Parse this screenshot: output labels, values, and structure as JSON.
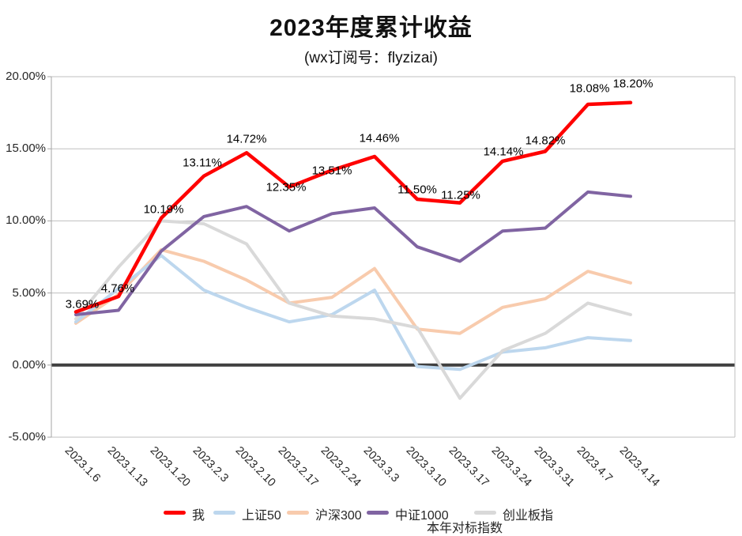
{
  "title": "2023年度累计收益",
  "subtitle": "(wx订阅号：flyzizai)",
  "legend_note": "本年对标指数",
  "chart_data": {
    "type": "line",
    "title": "2023年度累计收益",
    "subtitle": "(wx订阅号：flyzizai)",
    "categories": [
      "2023.1.6",
      "2023.1.13",
      "2023.1.20",
      "2023.2.3",
      "2023.2.10",
      "2023.2.17",
      "2023.2.24",
      "2023.3.3",
      "2023.3.10",
      "2023.3.17",
      "2023.3.24",
      "2023.3.31",
      "2023.4.7",
      "2023.4.14"
    ],
    "ylim": [
      -5,
      20
    ],
    "yticks": [
      {
        "v": 20,
        "label": "20.00%"
      },
      {
        "v": 15,
        "label": "15.00%"
      },
      {
        "v": 10,
        "label": "10.00%"
      },
      {
        "v": 5,
        "label": "5.00%"
      },
      {
        "v": 0,
        "label": "0.00%"
      },
      {
        "v": -5,
        "label": "-5.00%"
      }
    ],
    "grid": true,
    "grid_color": "#BFBFBF",
    "zero_line_color": "#404040",
    "axis_color": "#A6A6A6",
    "legend_position": "bottom",
    "series": [
      {
        "name": "我",
        "color": "#FF0000",
        "width": 4.5,
        "values": [
          3.69,
          4.76,
          10.19,
          13.11,
          14.72,
          12.35,
          13.51,
          14.46,
          11.5,
          11.25,
          14.14,
          14.82,
          18.08,
          18.2
        ],
        "labels": [
          "3.69%",
          "4.76%",
          "10.19%",
          "13.11%",
          "14.72%",
          "12.35%",
          "13.51%",
          "14.46%",
          "11.50%",
          "11.25%",
          "14.14%",
          "14.82%",
          "18.08%",
          "18.20%"
        ]
      },
      {
        "name": "上证50",
        "color": "#BDD7EE",
        "width": 4,
        "values": [
          3.0,
          5.3,
          7.6,
          5.2,
          4.0,
          3.0,
          3.5,
          5.2,
          -0.1,
          -0.3,
          0.9,
          1.2,
          1.9,
          1.7
        ]
      },
      {
        "name": "沪深300",
        "color": "#F8CBAD",
        "width": 4,
        "values": [
          2.9,
          4.9,
          8.0,
          7.2,
          5.9,
          4.3,
          4.7,
          6.7,
          2.5,
          2.2,
          4.0,
          4.6,
          6.5,
          5.7
        ]
      },
      {
        "name": "中证1000",
        "color": "#8064A2",
        "width": 4,
        "values": [
          3.5,
          3.8,
          7.9,
          10.3,
          11.0,
          9.3,
          10.5,
          10.9,
          8.2,
          7.2,
          9.3,
          9.5,
          12.0,
          11.7
        ]
      },
      {
        "name": "创业板指",
        "color": "#D9D9D9",
        "width": 4,
        "values": [
          3.2,
          6.8,
          10.0,
          9.8,
          8.4,
          4.3,
          3.4,
          3.2,
          2.6,
          -2.3,
          1.0,
          2.2,
          4.3,
          3.5
        ]
      }
    ]
  }
}
